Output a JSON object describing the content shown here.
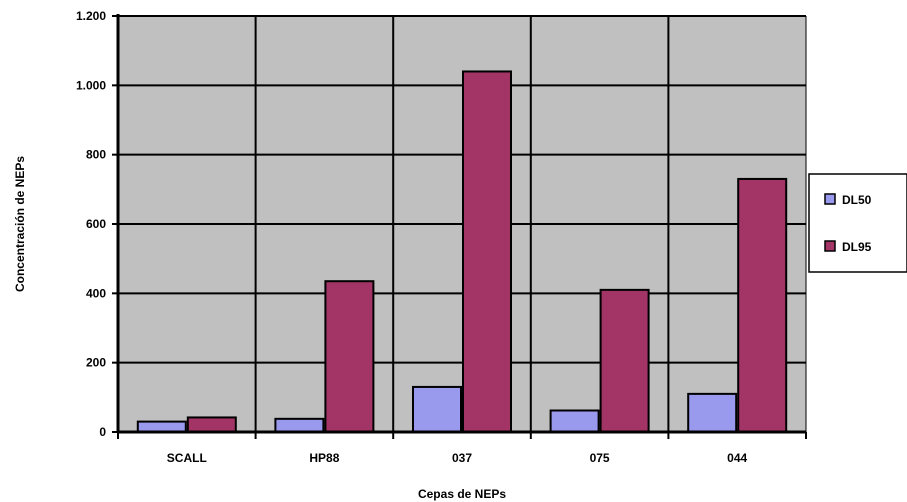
{
  "chart_data": {
    "type": "bar",
    "title": "",
    "xlabel": "Cepas de NEPs",
    "ylabel": "Concentración de NEPs",
    "categories": [
      "SCALL",
      "HP88",
      "037",
      "075",
      "044"
    ],
    "series": [
      {
        "name": "DL50",
        "values": [
          30,
          38,
          130,
          62,
          110
        ],
        "color": "#9999ee"
      },
      {
        "name": "DL95",
        "values": [
          42,
          435,
          1040,
          410,
          730
        ],
        "color": "#a23466"
      }
    ],
    "ylim": [
      0,
      1200
    ],
    "yticks": [
      0,
      200,
      400,
      600,
      800,
      1000,
      1200
    ],
    "ytick_labels": [
      "0",
      "200",
      "400",
      "600",
      "800",
      "1.000",
      "1.200"
    ],
    "grid": true,
    "plot_background": "#c0c0c0",
    "legend_position": "right"
  }
}
